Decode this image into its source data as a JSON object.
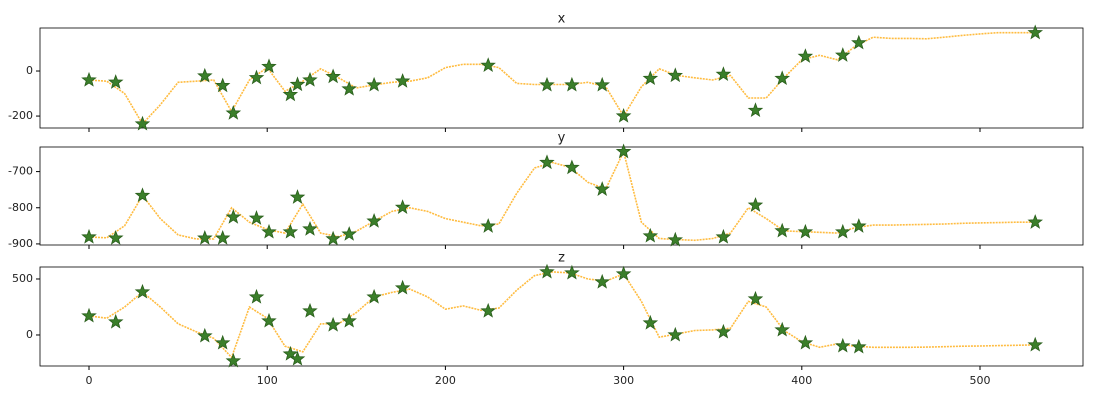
{
  "chart_data": [
    {
      "type": "line",
      "title": "x",
      "xlim": [
        -27.5,
        557.8
      ],
      "ylim": [
        -253,
        191
      ],
      "yticks": [
        -200,
        0
      ],
      "series": [
        {
          "color": "#ffa500",
          "x": [
            0,
            10,
            20,
            30,
            40,
            50,
            60,
            70,
            80,
            90,
            100,
            110,
            120,
            130,
            140,
            150,
            160,
            170,
            180,
            190,
            200,
            210,
            220,
            230,
            240,
            250,
            260,
            270,
            280,
            290,
            300,
            310,
            320,
            330,
            340,
            350,
            360,
            370,
            380,
            390,
            400,
            410,
            420,
            430,
            440,
            450,
            460,
            470,
            480,
            490,
            500,
            510,
            520,
            530
          ],
          "values": [
            -40,
            -45,
            -100,
            -235,
            -150,
            -50,
            -45,
            -40,
            -180,
            -40,
            15,
            -90,
            -45,
            10,
            -30,
            -75,
            -62,
            -50,
            -45,
            -30,
            15,
            30,
            30,
            15,
            -55,
            -60,
            -60,
            -60,
            -50,
            -70,
            -200,
            -70,
            10,
            -20,
            -30,
            -40,
            -20,
            -120,
            -120,
            -30,
            50,
            70,
            50,
            110,
            150,
            145,
            145,
            143,
            150,
            158,
            165,
            170,
            170,
            170
          ]
        },
        {
          "color": "#3b7f2a",
          "marker": "star",
          "x": [
            0,
            15,
            30,
            65,
            75,
            81,
            94,
            101,
            113,
            117,
            124,
            137,
            146,
            160,
            176,
            224,
            257,
            271,
            288,
            300,
            315,
            329,
            356,
            374,
            389,
            402,
            423,
            432,
            531
          ],
          "values": [
            -40,
            -50,
            -235,
            -22,
            -65,
            -187,
            -30,
            20,
            -105,
            -60,
            -40,
            -25,
            -80,
            -62,
            -45,
            25,
            -62,
            -62,
            -62,
            -200,
            -33,
            -20,
            -15,
            -175,
            -33,
            65,
            70,
            125,
            170
          ]
        }
      ]
    },
    {
      "type": "line",
      "title": "y",
      "xlim": [
        -27.5,
        557.8
      ],
      "ylim": [
        -903,
        -632
      ],
      "yticks": [
        -900,
        -800,
        -700
      ],
      "series": [
        {
          "color": "#ffa500",
          "x": [
            0,
            10,
            20,
            30,
            40,
            50,
            60,
            70,
            80,
            90,
            100,
            110,
            120,
            130,
            140,
            150,
            160,
            170,
            180,
            190,
            200,
            210,
            220,
            230,
            240,
            250,
            260,
            270,
            280,
            290,
            300,
            310,
            320,
            330,
            340,
            350,
            360,
            370,
            380,
            390,
            400,
            410,
            420,
            430,
            440,
            450,
            460,
            470,
            480,
            490,
            500,
            510,
            520,
            530
          ],
          "values": [
            -881,
            -883,
            -850,
            -766,
            -830,
            -875,
            -886,
            -886,
            -800,
            -840,
            -860,
            -870,
            -790,
            -870,
            -880,
            -865,
            -837,
            -810,
            -800,
            -810,
            -830,
            -840,
            -850,
            -845,
            -760,
            -690,
            -675,
            -688,
            -730,
            -748,
            -645,
            -840,
            -885,
            -888,
            -890,
            -885,
            -870,
            -800,
            -830,
            -864,
            -866,
            -868,
            -870,
            -855,
            -848,
            -848,
            -847,
            -846,
            -845,
            -843,
            -842,
            -841,
            -840,
            -840
          ]
        },
        {
          "color": "#3b7f2a",
          "marker": "star",
          "x": [
            0,
            15,
            30,
            65,
            75,
            81,
            94,
            101,
            113,
            117,
            124,
            137,
            146,
            160,
            176,
            224,
            257,
            271,
            288,
            300,
            315,
            329,
            356,
            374,
            389,
            402,
            423,
            432,
            531
          ],
          "values": [
            -881,
            -884,
            -766,
            -884,
            -884,
            -826,
            -829,
            -867,
            -867,
            -771,
            -859,
            -886,
            -873,
            -837,
            -799,
            -851,
            -675,
            -689,
            -749,
            -645,
            -878,
            -889,
            -881,
            -793,
            -864,
            -867,
            -867,
            -851,
            -840
          ]
        }
      ]
    },
    {
      "type": "line",
      "title": "z",
      "xlim": [
        -27.5,
        557.8
      ],
      "ylim": [
        -277,
        607
      ],
      "yticks": [
        0,
        500
      ],
      "xticks": [
        0,
        100,
        200,
        300,
        400,
        500
      ],
      "series": [
        {
          "color": "#ffa500",
          "x": [
            0,
            10,
            20,
            30,
            40,
            50,
            60,
            70,
            80,
            90,
            100,
            110,
            120,
            130,
            140,
            150,
            160,
            170,
            180,
            190,
            200,
            210,
            220,
            230,
            240,
            250,
            260,
            270,
            280,
            290,
            300,
            310,
            320,
            330,
            340,
            350,
            360,
            370,
            380,
            390,
            400,
            410,
            420,
            430,
            440,
            450,
            460,
            470,
            480,
            490,
            500,
            510,
            520,
            530
          ],
          "values": [
            170,
            150,
            250,
            384,
            250,
            100,
            30,
            -30,
            -200,
            250,
            150,
            -100,
            -150,
            100,
            100,
            200,
            339,
            380,
            410,
            340,
            230,
            260,
            220,
            240,
            400,
            530,
            563,
            554,
            500,
            480,
            545,
            300,
            -20,
            10,
            40,
            45,
            60,
            300,
            250,
            40,
            -60,
            -110,
            -80,
            -100,
            -110,
            -110,
            -110,
            -108,
            -105,
            -100,
            -98,
            -95,
            -92,
            -89
          ]
        },
        {
          "color": "#3b7f2a",
          "marker": "star",
          "x": [
            0,
            15,
            30,
            65,
            75,
            81,
            94,
            101,
            113,
            117,
            124,
            137,
            146,
            160,
            176,
            224,
            257,
            271,
            288,
            300,
            315,
            329,
            356,
            374,
            389,
            402,
            423,
            432,
            531
          ],
          "values": [
            170,
            116,
            384,
            -9,
            -71,
            -232,
            339,
            125,
            -170,
            -214,
            214,
            89,
            125,
            339,
            420,
            214,
            563,
            554,
            473,
            545,
            107,
            0,
            27,
            321,
            45,
            -71,
            -98,
            -107,
            -89
          ]
        }
      ]
    }
  ]
}
